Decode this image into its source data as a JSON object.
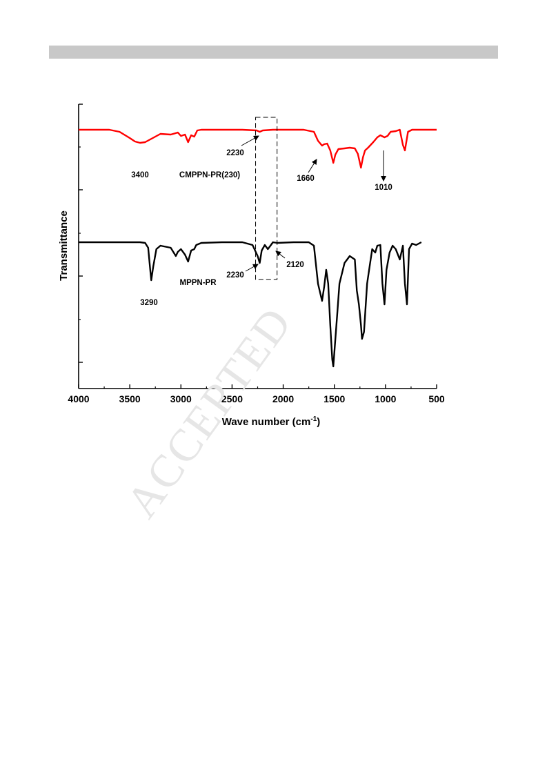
{
  "watermark": "ACCEPTED",
  "chart_data": {
    "type": "line",
    "xlabel": "Wave number (cm",
    "xlabel_sup": "-1",
    "xlabel_suffix": ")",
    "ylabel": "Transmittance",
    "xlim": [
      4000,
      500
    ],
    "x_ticks": [
      4000,
      3500,
      3000,
      2500,
      2000,
      1500,
      1000,
      500
    ],
    "x_tick_labels": [
      "4000",
      "3500",
      "3000",
      "2500",
      "2000",
      "1500",
      "1000",
      "500"
    ],
    "y_tick_count": 4,
    "x_reversed": true,
    "grid": false,
    "legend": "none",
    "series": [
      {
        "name": "CMPPN-PR(230)",
        "color": "#ff0000",
        "x": [
          4000,
          3700,
          3600,
          3500,
          3450,
          3400,
          3350,
          3300,
          3200,
          3100,
          3030,
          3000,
          2960,
          2930,
          2900,
          2870,
          2840,
          2800,
          2600,
          2400,
          2260,
          2230,
          2200,
          2100,
          1900,
          1800,
          1700,
          1660,
          1620,
          1600,
          1570,
          1540,
          1510,
          1490,
          1460,
          1400,
          1350,
          1300,
          1270,
          1240,
          1220,
          1200,
          1170,
          1120,
          1080,
          1050,
          1010,
          980,
          950,
          900,
          860,
          830,
          810,
          780,
          740,
          650,
          500
        ],
        "y": [
          0,
          0,
          3,
          12,
          17,
          19,
          18,
          14,
          6,
          7,
          4,
          9,
          7,
          18,
          8,
          10,
          1,
          0,
          0,
          0,
          1,
          3,
          1,
          0,
          0,
          0,
          3,
          16,
          23,
          21,
          20,
          30,
          48,
          36,
          28,
          27,
          26,
          27,
          35,
          55,
          40,
          30,
          26,
          18,
          11,
          8,
          11,
          9,
          3,
          2,
          0,
          22,
          30,
          3,
          0,
          0,
          0
        ]
      },
      {
        "name": "MPPN-PR",
        "color": "#000000",
        "x": [
          4000,
          3400,
          3350,
          3320,
          3300,
          3290,
          3270,
          3240,
          3200,
          3100,
          3050,
          3030,
          3000,
          2960,
          2930,
          2900,
          2870,
          2850,
          2800,
          2600,
          2400,
          2300,
          2250,
          2230,
          2210,
          2180,
          2150,
          2120,
          2100,
          2060,
          1900,
          1750,
          1700,
          1660,
          1620,
          1600,
          1580,
          1560,
          1540,
          1520,
          1510,
          1490,
          1470,
          1450,
          1400,
          1350,
          1300,
          1280,
          1260,
          1240,
          1230,
          1210,
          1180,
          1150,
          1130,
          1100,
          1080,
          1050,
          1030,
          1010,
          990,
          960,
          930,
          900,
          860,
          830,
          810,
          790,
          770,
          740,
          700,
          650
        ],
        "y": [
          0,
          0,
          1,
          8,
          40,
          55,
          35,
          10,
          5,
          8,
          20,
          14,
          10,
          18,
          28,
          12,
          10,
          4,
          1,
          0,
          0,
          4,
          20,
          30,
          12,
          4,
          10,
          4,
          0,
          1,
          0,
          0,
          5,
          60,
          85,
          65,
          40,
          60,
          120,
          170,
          180,
          140,
          100,
          60,
          30,
          20,
          25,
          70,
          90,
          120,
          140,
          130,
          60,
          30,
          10,
          15,
          5,
          4,
          60,
          90,
          40,
          15,
          5,
          10,
          25,
          5,
          60,
          90,
          10,
          2,
          4,
          0
        ]
      }
    ],
    "annotations": [
      {
        "text": "3400",
        "series": 0
      },
      {
        "text": "CMPPN-PR(230)",
        "series": 0
      },
      {
        "text": "2230",
        "series": 0
      },
      {
        "text": "1660",
        "series": 0
      },
      {
        "text": "1010",
        "series": 0
      },
      {
        "text": "3290",
        "series": 1
      },
      {
        "text": "MPPN-PR",
        "series": 1
      },
      {
        "text": "2230",
        "series": 1
      },
      {
        "text": "2120",
        "series": 1
      }
    ],
    "highlight_box": {
      "x_range": [
        2270,
        2060
      ],
      "style": "dashed"
    }
  }
}
